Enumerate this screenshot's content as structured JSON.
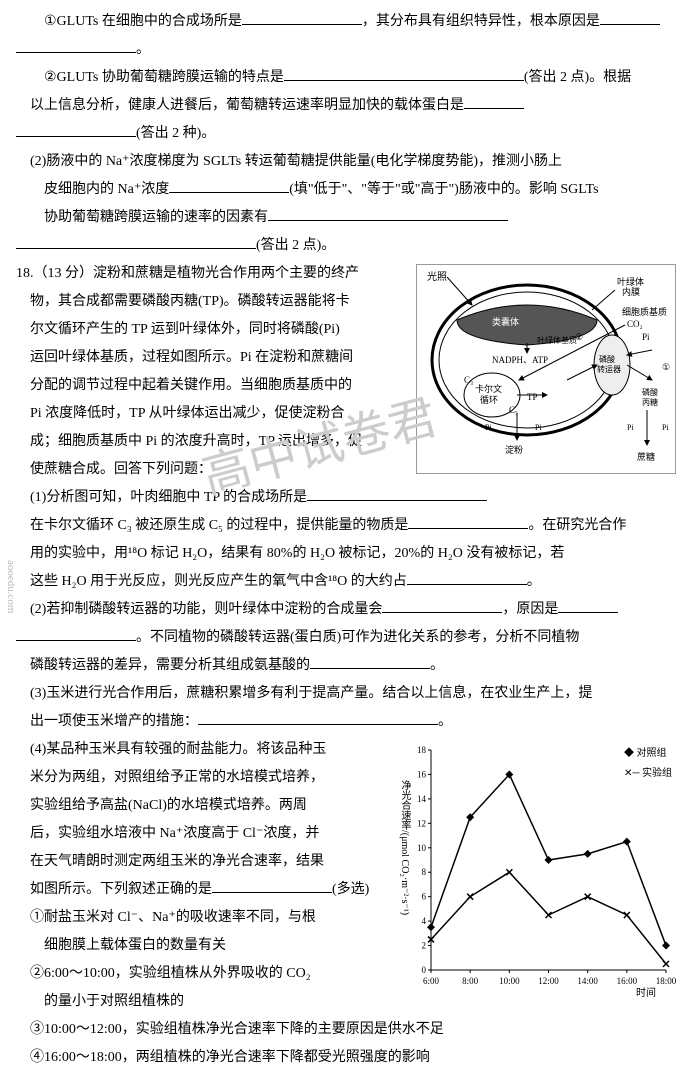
{
  "q17_1_1a": "①GLUTs 在细胞中的合成场所是",
  "q17_1_1b": "，其分布具有组织特异性，根本原因是",
  "q17_1_1c": "。",
  "q17_1_2a": "②GLUTs 协助葡萄糖跨膜运输的特点是",
  "q17_1_2b": "(答出 2 点)。根据",
  "q17_1_3": "以上信息分析，健康人进餐后，葡萄糖转运速率明显加快的载体蛋白是",
  "q17_1_4": "(答出 2 种)。",
  "q17_2_1": "(2)肠液中的 Na⁺浓度梯度为 SGLTs 转运葡萄糖提供能量(电化学梯度势能)，推测小肠上",
  "q17_2_2a": "皮细胞内的 Na⁺浓度",
  "q17_2_2b": "(填\"低于\"、\"等于\"或\"高于\")肠液中的。影响 SGLTs",
  "q17_2_3": "协助葡萄糖跨膜运输的速率的因素有",
  "q17_2_4": "(答出 2 点)。",
  "q18_head": "18.（13 分）淀粉和蔗糖是植物光合作用两个主要的终产",
  "q18_b1": "物，其合成都需要磷酸丙糖(TP)。磷酸转运器能将卡",
  "q18_b2": "尔文循环产生的 TP 运到叶绿体外，同时将磷酸(Pi)",
  "q18_b3": "运回叶绿体基质，过程如图所示。Pi 在淀粉和蔗糖间",
  "q18_b4": "分配的调节过程中起着关键作用。当细胞质基质中的",
  "q18_b5": "Pi 浓度降低时，TP 从叶绿体运出减少，促使淀粉合",
  "q18_b6": "成；细胞质基质中 Pi 的浓度升高时，TP 运出增多，促",
  "q18_b7": "使蔗糖合成。回答下列问题：",
  "q18_1_1": "(1)分析图可知，叶肉细胞中 TP 的合成场所是",
  "q18_1_2a": "在卡尔文循环 C₃ 被还原生成 C₅ 的过程中，提供能量的物质是",
  "q18_1_2b": "。在研究光合作",
  "q18_1_3": "用的实验中，用¹⁸O 标记 H₂O，结果有 80%的 H₂O 被标记，20%的 H₂O 没有被标记，若",
  "q18_1_4a": "这些 H₂O 用于光反应，则光反应产生的氧气中含¹⁸O 的大约占",
  "q18_1_4b": "。",
  "q18_2_1a": "(2)若抑制磷酸转运器的功能，则叶绿体中淀粉的合成量会",
  "q18_2_1b": "，原因是",
  "q18_2_2": "。不同植物的磷酸转运器(蛋白质)可作为进化关系的参考，分析不同植物",
  "q18_2_3a": "磷酸转运器的差异，需要分析其组成氨基酸的",
  "q18_2_3b": "。",
  "q18_3_1": "(3)玉米进行光合作用后，蔗糖积累增多有利于提高产量。结合以上信息，在农业生产上，提",
  "q18_3_2a": "出一项使玉米增产的措施：",
  "q18_3_2b": "。",
  "q18_4_1": "(4)某品种玉米具有较强的耐盐能力。将该品种玉",
  "q18_4_2": "米分为两组，对照组给予正常的水培模式培养，",
  "q18_4_3": "实验组给予高盐(NaCl)的水培模式培养。两周",
  "q18_4_4": "后，实验组水培液中 Na⁺浓度高于 Cl⁻浓度，并",
  "q18_4_5": "在天气晴朗时测定两组玉米的净光合速率，结果",
  "q18_4_6a": "如图所示。下列叙述正确的是",
  "q18_4_6b": "(多选)",
  "q18_4_7": "①耐盐玉米对 Cl⁻、Na⁺的吸收速率不同，与根",
  "q18_4_8": "细胞膜上载体蛋白的数量有关",
  "q18_4_9": "②6:00～10:00，实验组植株从外界吸收的 CO₂",
  "q18_4_10": "的量小于对照组植株的",
  "q18_4_11": "③10:00～12:00，实验组植株净光合速率下降的主要原因是供水不足",
  "q18_4_12": "④16:00～18:00，两组植株的净光合速率下降都受光照强度的影响",
  "d1": {
    "labels": {
      "light": "光照",
      "inner": "叶绿体\n内膜",
      "cyto": "细胞质基质",
      "thyl": "类囊体",
      "stroma": "叶绿体基质",
      "nadph": "NADPH、ATP",
      "trans": "磷酸\n转运器",
      "pi": "磷酸\n丙糖",
      "calvin": "卡尔文\n循环",
      "starch": "淀粉",
      "sucrose": "蔗糖",
      "c3": "C₃",
      "c5": "C₅",
      "co2": "CO₂",
      "tp": "TP",
      "pilbl": "Pi",
      "n1": "①",
      "n2": "②"
    }
  },
  "chart": {
    "ylabel": "净光合速率/(μmol CO₂·m⁻²·s⁻¹)",
    "xlabel": "时间",
    "xticks": [
      "6:00",
      "8:00",
      "10:00",
      "12:00",
      "14:00",
      "16:00",
      "18:00"
    ],
    "ymax": 18,
    "ytick": 2,
    "legend": {
      "ctrl": "对照组",
      "exp": "实验组"
    },
    "control": [
      3.5,
      12.5,
      16,
      9,
      9.5,
      10.5,
      2
    ],
    "experiment": [
      2.5,
      6,
      8,
      4.5,
      6,
      4.5,
      0.5
    ],
    "color": "#000000"
  },
  "watermark": "高中试卷君",
  "wm2": "aooedu.com"
}
